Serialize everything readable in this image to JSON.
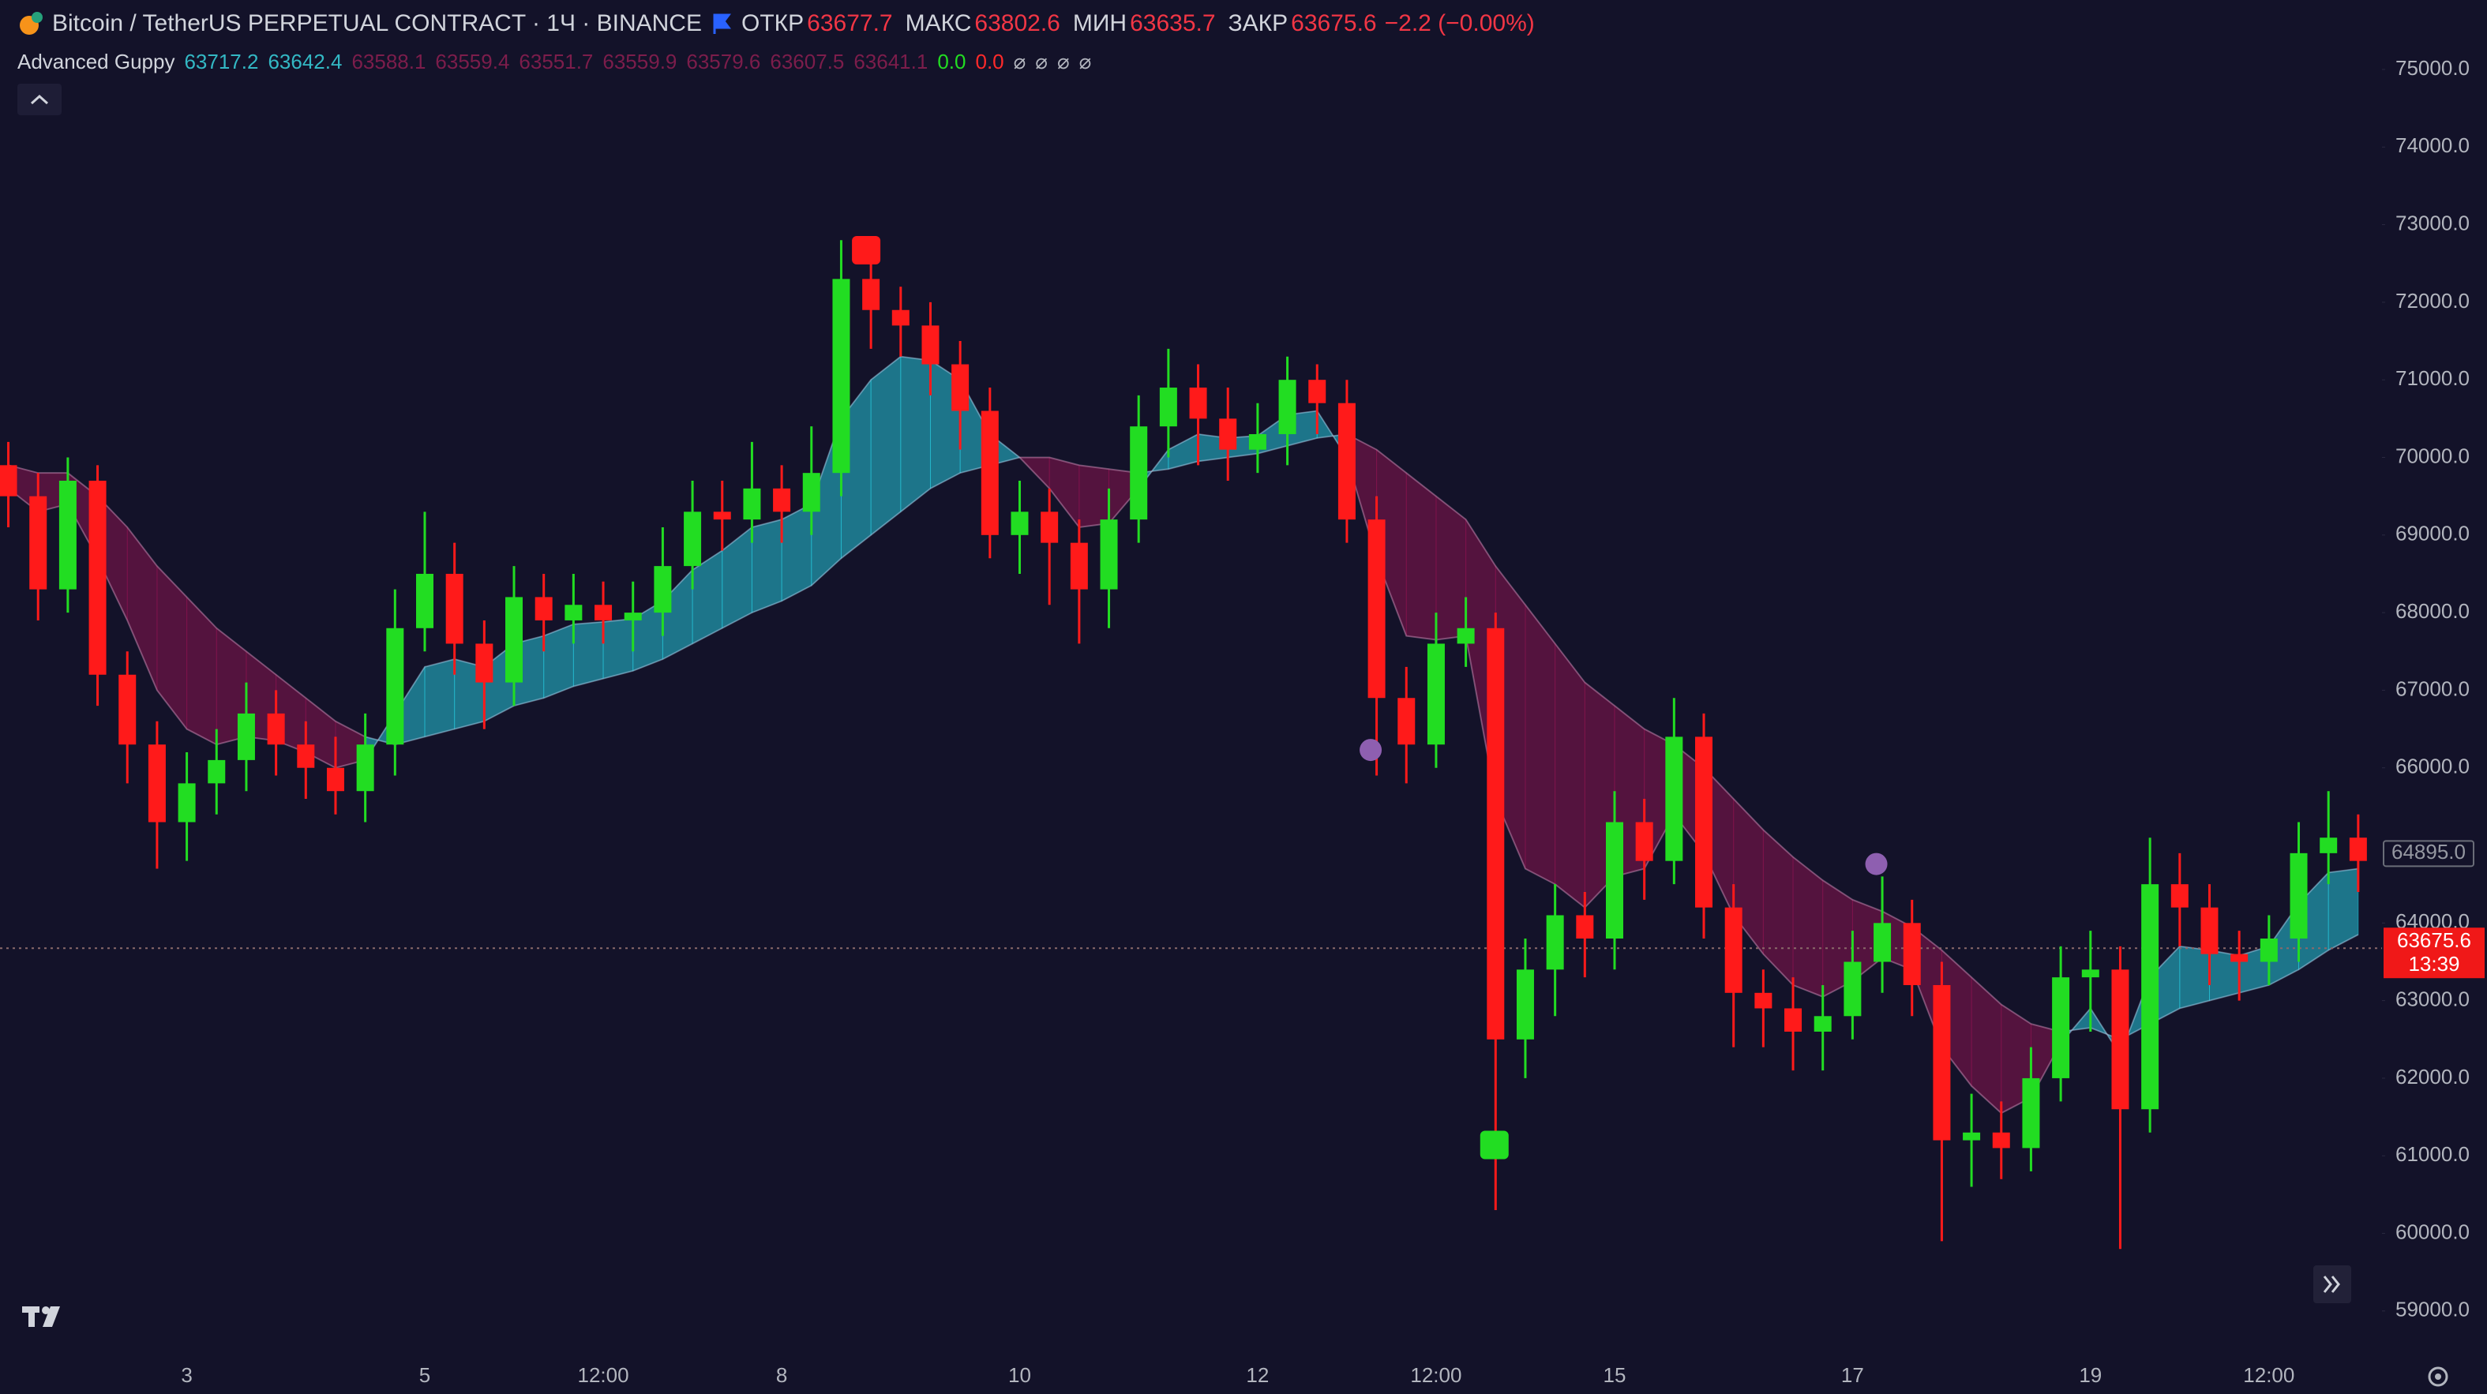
{
  "header": {
    "symbol": "Bitcoin / TetherUS PERPETUAL CONTRACT · 1Ч · BINANCE",
    "open_label": "ОТКР",
    "open": "63677.7",
    "high_label": "МАКС",
    "high": "63802.6",
    "low_label": "МИН",
    "low": "63635.7",
    "close_label": "ЗАКР",
    "close": "63675.6",
    "change": "−2.2 (−0.00%)"
  },
  "indicator": {
    "name": "Advanced Guppy",
    "values": [
      {
        "text": "63717.2",
        "color": "#33b8c4"
      },
      {
        "text": "63642.4",
        "color": "#33b8c4"
      },
      {
        "text": "63588.1",
        "color": "#7c1d4b"
      },
      {
        "text": "63559.4",
        "color": "#7c1d4b"
      },
      {
        "text": "63551.7",
        "color": "#7c1d4b"
      },
      {
        "text": "63559.9",
        "color": "#7c1d4b"
      },
      {
        "text": "63579.6",
        "color": "#7c1d4b"
      },
      {
        "text": "63607.5",
        "color": "#7c1d4b"
      },
      {
        "text": "63641.1",
        "color": "#7c1d4b"
      },
      {
        "text": "0.0",
        "color": "#22dd22"
      },
      {
        "text": "0.0",
        "color": "#ff2a2a"
      },
      {
        "text": "⌀",
        "color": "#b2b5be"
      },
      {
        "text": "⌀",
        "color": "#b2b5be"
      },
      {
        "text": "⌀",
        "color": "#b2b5be"
      },
      {
        "text": "⌀",
        "color": "#b2b5be"
      }
    ]
  },
  "chart_data": {
    "type": "candlestick",
    "x": [
      1.5,
      1.75,
      2,
      2.25,
      2.5,
      2.75,
      3,
      3.25,
      3.5,
      3.75,
      4,
      4.25,
      4.5,
      4.75,
      5,
      5.25,
      5.5,
      5.75,
      6,
      6.25,
      6.5,
      6.75,
      7,
      7.25,
      7.5,
      7.75,
      8,
      8.25,
      8.5,
      8.75,
      9,
      9.25,
      9.5,
      9.75,
      10,
      10.25,
      10.5,
      10.75,
      11,
      11.25,
      11.5,
      11.75,
      12,
      12.25,
      12.5,
      12.75,
      13,
      13.25,
      13.5,
      13.75,
      14,
      14.25,
      14.5,
      14.75,
      15,
      15.25,
      15.5,
      15.75,
      16,
      16.25,
      16.5,
      16.75,
      17,
      17.25,
      17.5,
      17.75,
      18,
      18.25,
      18.5,
      18.75,
      19,
      19.25,
      19.5,
      19.75,
      20,
      20.25,
      20.5,
      20.75,
      21,
      21.25
    ],
    "open": [
      69900,
      69500,
      68300,
      69700,
      67200,
      66300,
      65300,
      65800,
      66100,
      66700,
      66300,
      66000,
      65700,
      66300,
      67800,
      68500,
      67600,
      67100,
      68200,
      67900,
      68100,
      67900,
      68000,
      68600,
      69300,
      69200,
      69600,
      69300,
      69800,
      72300,
      71900,
      71700,
      71200,
      70600,
      69000,
      69300,
      68900,
      68300,
      69200,
      70400,
      70900,
      70500,
      70100,
      70300,
      71000,
      70700,
      69200,
      66900,
      66300,
      67600,
      67800,
      62500,
      63400,
      64100,
      63800,
      65300,
      64800,
      66400,
      64200,
      63100,
      62900,
      62600,
      62800,
      63500,
      64000,
      63200,
      61200,
      61300,
      61100,
      62000,
      63300,
      63400,
      61600,
      64500,
      64200,
      63600,
      63500,
      63800,
      64900,
      65100
    ],
    "high": [
      70200,
      69800,
      70000,
      69900,
      67500,
      66600,
      66200,
      66500,
      67100,
      67000,
      66600,
      66400,
      66700,
      68300,
      69300,
      68900,
      67900,
      68600,
      68500,
      68500,
      68400,
      68400,
      69100,
      69700,
      69700,
      70200,
      69900,
      70400,
      72800,
      72600,
      72200,
      72000,
      71500,
      70900,
      69700,
      69600,
      69200,
      69600,
      70800,
      71400,
      71200,
      70900,
      70700,
      71300,
      71200,
      71000,
      69500,
      67300,
      68000,
      68200,
      68000,
      63800,
      64500,
      64400,
      65700,
      65600,
      66900,
      66700,
      64500,
      63400,
      63300,
      63200,
      63900,
      64600,
      64300,
      63500,
      61800,
      61700,
      62400,
      63700,
      63900,
      63700,
      65100,
      64900,
      64500,
      63900,
      64100,
      65300,
      65700,
      65400
    ],
    "low": [
      69100,
      67900,
      68000,
      66800,
      65800,
      64700,
      64800,
      65400,
      65700,
      65900,
      65600,
      65400,
      65300,
      65900,
      67500,
      67200,
      66500,
      66800,
      67500,
      67600,
      67600,
      67500,
      67700,
      68300,
      68800,
      68900,
      68900,
      69000,
      69500,
      71400,
      71300,
      70800,
      70100,
      68700,
      68500,
      68100,
      67600,
      67800,
      68900,
      70000,
      69900,
      69700,
      69800,
      69900,
      70300,
      68900,
      65900,
      65800,
      66000,
      67300,
      60300,
      62000,
      62800,
      63300,
      63400,
      64300,
      64500,
      63800,
      62400,
      62400,
      62100,
      62100,
      62500,
      63100,
      62800,
      59900,
      60600,
      60700,
      60800,
      61700,
      62600,
      59800,
      61300,
      63700,
      63200,
      63000,
      63200,
      63500,
      64500,
      64400
    ],
    "close": [
      69500,
      68300,
      69700,
      67200,
      66300,
      65300,
      65800,
      66100,
      66700,
      66300,
      66000,
      65700,
      66300,
      67800,
      68500,
      67600,
      67100,
      68200,
      67900,
      68100,
      67900,
      68000,
      68600,
      69300,
      69200,
      69600,
      69300,
      69800,
      72300,
      71900,
      71700,
      71200,
      70600,
      69000,
      69300,
      68900,
      68300,
      69200,
      70400,
      70900,
      70500,
      70100,
      70300,
      71000,
      70700,
      69200,
      66900,
      66300,
      67600,
      67800,
      62500,
      63400,
      64100,
      63800,
      65300,
      64800,
      66400,
      64200,
      63100,
      62900,
      62600,
      62800,
      63500,
      64000,
      63200,
      61200,
      61300,
      61100,
      62000,
      63300,
      63400,
      61600,
      64500,
      64200,
      63600,
      63500,
      63800,
      64900,
      65100,
      64800
    ],
    "up_color": "#22dd22",
    "down_color": "#ff1a1a",
    "ribbon": {
      "bull_color": "#26c6da",
      "bear_color": "#8a1450",
      "fast": [
        69600,
        69300,
        69400,
        68700,
        67900,
        67000,
        66500,
        66300,
        66400,
        66350,
        66200,
        66000,
        66100,
        66700,
        67300,
        67400,
        67300,
        67600,
        67700,
        67850,
        67880,
        67920,
        68150,
        68550,
        68800,
        69100,
        69200,
        69400,
        70500,
        71000,
        71300,
        71250,
        71000,
        70300,
        70000,
        69600,
        69100,
        69150,
        69600,
        70100,
        70300,
        70250,
        70280,
        70550,
        70600,
        70000,
        68700,
        67700,
        67650,
        67700,
        65600,
        64700,
        64500,
        64200,
        64600,
        64700,
        65400,
        64900,
        64100,
        63600,
        63200,
        63050,
        63250,
        63550,
        63400,
        62400,
        61900,
        61550,
        61750,
        62450,
        62900,
        62300,
        63300,
        63700,
        63650,
        63580,
        63700,
        64250,
        64650,
        64700
      ],
      "slow": [
        69900,
        69800,
        69800,
        69500,
        69100,
        68600,
        68200,
        67800,
        67500,
        67200,
        66900,
        66600,
        66400,
        66300,
        66400,
        66500,
        66600,
        66800,
        66900,
        67050,
        67150,
        67250,
        67400,
        67600,
        67800,
        68000,
        68150,
        68350,
        68700,
        69000,
        69300,
        69600,
        69800,
        69900,
        70000,
        70000,
        69900,
        69850,
        69800,
        69850,
        69950,
        70000,
        70050,
        70150,
        70250,
        70300,
        70100,
        69800,
        69500,
        69200,
        68600,
        68100,
        67600,
        67100,
        66800,
        66500,
        66300,
        66000,
        65600,
        65200,
        64850,
        64550,
        64300,
        64150,
        63950,
        63650,
        63300,
        62950,
        62700,
        62600,
        62650,
        62500,
        62700,
        62900,
        63000,
        63100,
        63200,
        63400,
        63650,
        63850
      ]
    },
    "markers": [
      {
        "x": 8.71,
        "y": 72670,
        "color": "#ff1a1a",
        "shape": "square"
      },
      {
        "x": 13.99,
        "y": 61140,
        "color": "#22dd22",
        "shape": "square"
      },
      {
        "x": 12.95,
        "y": 66230,
        "color": "#8e5fb0",
        "shape": "circle"
      },
      {
        "x": 17.2,
        "y": 64760,
        "color": "#8e5fb0",
        "shape": "circle"
      }
    ],
    "xlim": [
      1.43,
      21.45
    ],
    "xticks": [
      3,
      5,
      {
        "value": 6.5,
        "label": "12:00"
      },
      8,
      10,
      12,
      {
        "value": 13.5,
        "label": "12:00"
      },
      15,
      17,
      19,
      {
        "value": 20.5,
        "label": "12:00"
      }
    ],
    "ylim": [
      58500,
      75895
    ],
    "yticks": [
      {
        "value": 59000,
        "label": "59000.0"
      },
      {
        "value": 60000,
        "label": "60000.0"
      },
      {
        "value": 61000,
        "label": "61000.0"
      },
      {
        "value": 62000,
        "label": "62000.0"
      },
      {
        "value": 63000,
        "label": "63000.0"
      },
      {
        "value": 64000,
        "label": "64000.0"
      },
      {
        "value": 66000,
        "label": "66000.0"
      },
      {
        "value": 67000,
        "label": "67000.0"
      },
      {
        "value": 68000,
        "label": "68000.0"
      },
      {
        "value": 69000,
        "label": "69000.0"
      },
      {
        "value": 70000,
        "label": "70000.0"
      },
      {
        "value": 71000,
        "label": "71000.0"
      },
      {
        "value": 72000,
        "label": "72000.0"
      },
      {
        "value": 73000,
        "label": "73000.0"
      },
      {
        "value": 74000,
        "label": "74000.0"
      },
      {
        "value": 75000,
        "label": "75000.0"
      }
    ],
    "grid": false,
    "crosshair": {
      "value": 64895,
      "label": "64895.0"
    },
    "last_price": 63675.6,
    "countdown": "13:39"
  }
}
